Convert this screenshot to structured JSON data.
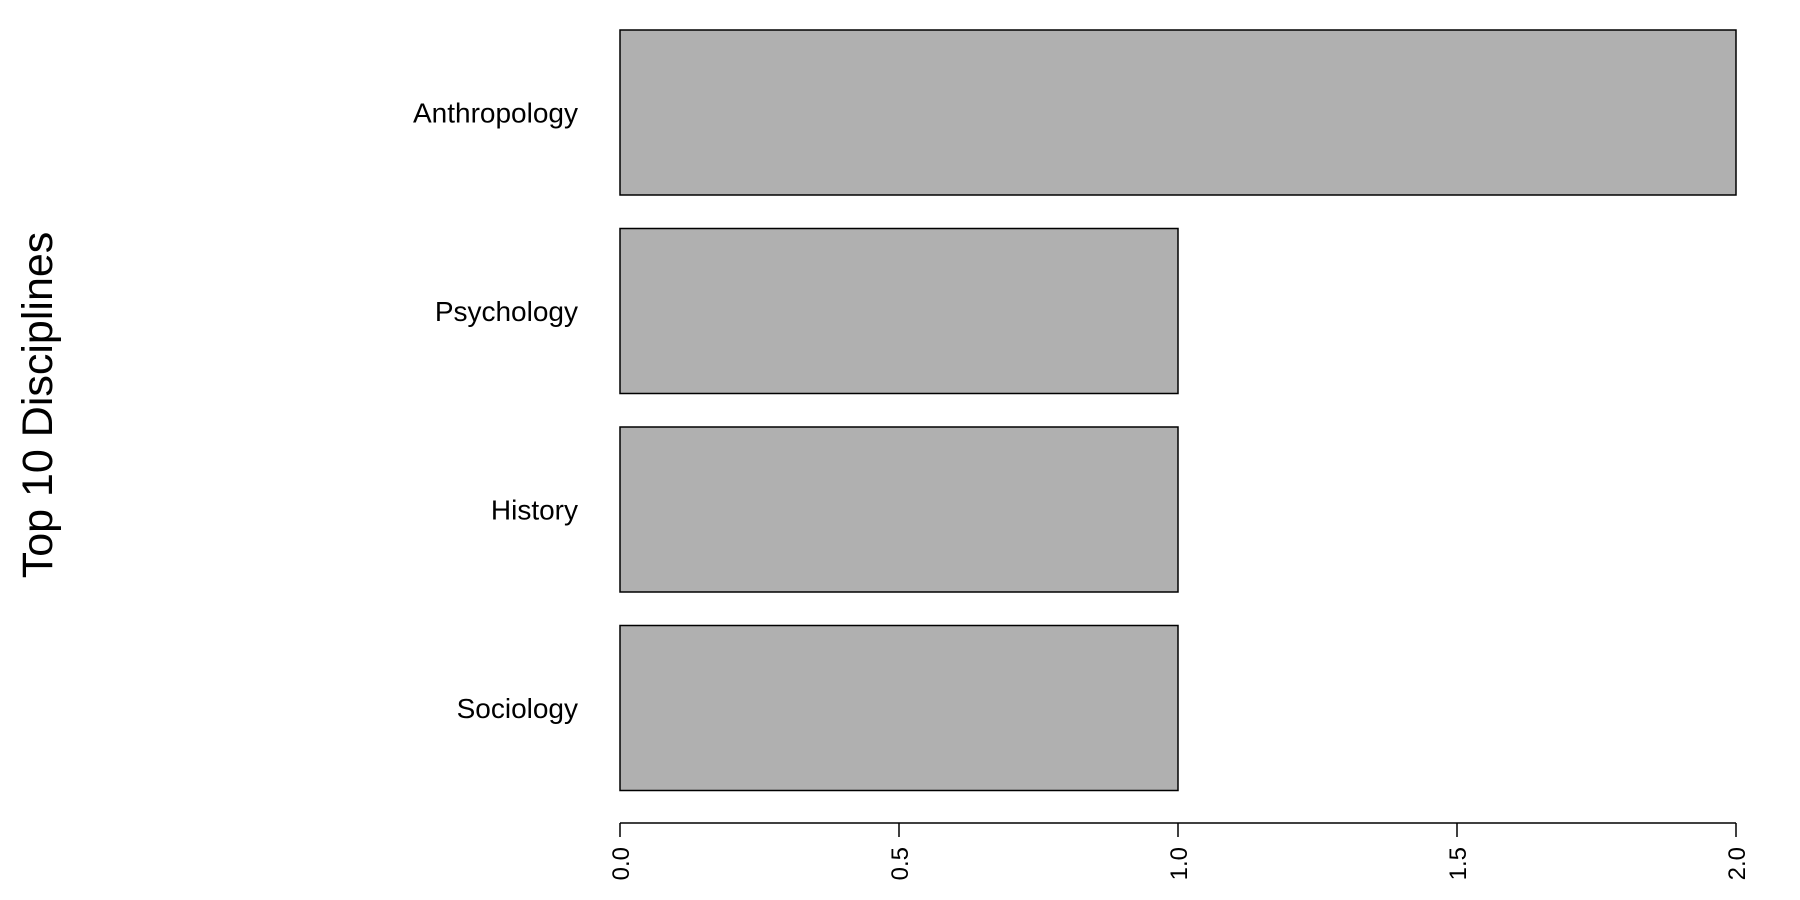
{
  "chart_data": {
    "type": "bar",
    "orientation": "horizontal",
    "title": "",
    "xlabel": "",
    "ylabel": "Top 10 Disciplines",
    "categories": [
      "Anthropology",
      "Psychology",
      "History",
      "Sociology"
    ],
    "values": [
      2,
      1,
      1,
      1
    ],
    "xlim": [
      0,
      2
    ],
    "xticks": [
      "0.0",
      "0.5",
      "1.0",
      "1.5",
      "2.0"
    ],
    "bar_color": "#b0b0b0",
    "bar_edge_color": "#000000",
    "grid": false,
    "legend": "none"
  }
}
